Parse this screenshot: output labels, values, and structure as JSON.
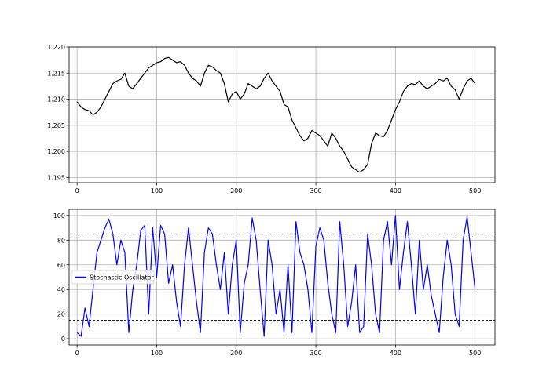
{
  "colors": {
    "price_line": "#000000",
    "oscillator_line": "#0000ff",
    "grid": "#b0b0b0",
    "threshold": "#000000",
    "frame": "#000000",
    "background": "#ffffff"
  },
  "chart_data": [
    {
      "type": "line",
      "title": "",
      "xlabel": "",
      "ylabel": "",
      "xlim": [
        -10,
        525
      ],
      "ylim": [
        1.194,
        1.22
      ],
      "grid": true,
      "x_ticks": [
        0,
        100,
        200,
        300,
        400,
        500
      ],
      "x_tick_labels": [
        "0",
        "100",
        "200",
        "300",
        "400",
        "500"
      ],
      "y_ticks": [
        1.195,
        1.2,
        1.205,
        1.21,
        1.215,
        1.22
      ],
      "y_tick_labels": [
        "1.195",
        "1.200",
        "1.205",
        "1.210",
        "1.215",
        "1.220"
      ],
      "series": [
        {
          "x": [
            0,
            5,
            10,
            15,
            20,
            25,
            30,
            35,
            40,
            45,
            50,
            55,
            60,
            65,
            70,
            75,
            80,
            85,
            90,
            95,
            100,
            105,
            110,
            115,
            120,
            125,
            130,
            135,
            140,
            145,
            150,
            155,
            160,
            165,
            170,
            175,
            180,
            185,
            190,
            195,
            200,
            205,
            210,
            215,
            220,
            225,
            230,
            235,
            240,
            245,
            250,
            255,
            260,
            265,
            270,
            275,
            280,
            285,
            290,
            295,
            300,
            305,
            310,
            315,
            320,
            325,
            330,
            335,
            340,
            345,
            350,
            355,
            360,
            365,
            370,
            375,
            380,
            385,
            390,
            395,
            400,
            405,
            410,
            415,
            420,
            425,
            430,
            435,
            440,
            445,
            450,
            455,
            460,
            465,
            470,
            475,
            480,
            485,
            490,
            495,
            500
          ],
          "y": [
            1.2095,
            1.2085,
            1.208,
            1.2078,
            1.207,
            1.2075,
            1.2085,
            1.21,
            1.2115,
            1.213,
            1.2135,
            1.2138,
            1.215,
            1.2125,
            1.212,
            1.213,
            1.214,
            1.215,
            1.216,
            1.2165,
            1.217,
            1.2172,
            1.2178,
            1.218,
            1.2175,
            1.217,
            1.2172,
            1.2165,
            1.215,
            1.214,
            1.2135,
            1.2125,
            1.215,
            1.2165,
            1.2162,
            1.2155,
            1.215,
            1.213,
            1.2095,
            1.211,
            1.2115,
            1.21,
            1.211,
            1.213,
            1.2125,
            1.212,
            1.2125,
            1.214,
            1.215,
            1.2135,
            1.2125,
            1.2115,
            1.209,
            1.2085,
            1.206,
            1.2045,
            1.203,
            1.202,
            1.2025,
            1.204,
            1.2035,
            1.203,
            1.202,
            1.201,
            1.2035,
            1.2025,
            1.201,
            1.2,
            1.1985,
            1.197,
            1.1965,
            1.196,
            1.1965,
            1.1975,
            1.2015,
            1.2035,
            1.203,
            1.2028,
            1.204,
            1.206,
            1.208,
            1.2095,
            1.2115,
            1.2125,
            1.213,
            1.2128,
            1.2135,
            1.2125,
            1.212,
            1.2125,
            1.213,
            1.2138,
            1.2135,
            1.214,
            1.2125,
            1.2118,
            1.21,
            1.212,
            1.2135,
            1.214,
            1.213
          ]
        }
      ]
    },
    {
      "type": "line",
      "title": "",
      "xlabel": "",
      "ylabel": "",
      "xlim": [
        -10,
        525
      ],
      "ylim": [
        -5,
        105
      ],
      "grid": true,
      "legend_position": "center-left",
      "reference_lines": [
        85,
        15
      ],
      "x_ticks": [
        0,
        100,
        200,
        300,
        400,
        500
      ],
      "x_tick_labels": [
        "0",
        "100",
        "200",
        "300",
        "400",
        "500"
      ],
      "y_ticks": [
        0,
        20,
        40,
        60,
        80,
        100
      ],
      "y_tick_labels": [
        "0",
        "20",
        "40",
        "60",
        "80",
        "100"
      ],
      "series": [
        {
          "name": "Stochastic Oscillator",
          "x": [
            0,
            5,
            10,
            15,
            20,
            25,
            30,
            35,
            40,
            45,
            50,
            55,
            60,
            65,
            70,
            75,
            80,
            85,
            90,
            95,
            100,
            105,
            110,
            115,
            120,
            125,
            130,
            135,
            140,
            145,
            150,
            155,
            160,
            165,
            170,
            175,
            180,
            185,
            190,
            195,
            200,
            205,
            210,
            215,
            220,
            225,
            230,
            235,
            240,
            245,
            250,
            255,
            260,
            265,
            270,
            275,
            280,
            285,
            290,
            295,
            300,
            305,
            310,
            315,
            320,
            325,
            330,
            335,
            340,
            345,
            350,
            355,
            360,
            365,
            370,
            375,
            380,
            385,
            390,
            395,
            400,
            405,
            410,
            415,
            420,
            425,
            430,
            435,
            440,
            445,
            450,
            455,
            460,
            465,
            470,
            475,
            480,
            485,
            490,
            495,
            500
          ],
          "y": [
            5,
            2,
            25,
            10,
            40,
            70,
            80,
            90,
            97,
            85,
            60,
            80,
            70,
            5,
            40,
            60,
            88,
            92,
            20,
            90,
            50,
            92,
            85,
            45,
            60,
            30,
            10,
            60,
            90,
            60,
            30,
            5,
            70,
            90,
            85,
            60,
            40,
            70,
            20,
            60,
            80,
            5,
            45,
            60,
            98,
            80,
            40,
            2,
            80,
            60,
            20,
            40,
            5,
            60,
            5,
            95,
            70,
            60,
            40,
            5,
            75,
            90,
            80,
            45,
            20,
            5,
            95,
            60,
            10,
            30,
            60,
            5,
            10,
            85,
            60,
            20,
            5,
            80,
            95,
            60,
            100,
            40,
            70,
            95,
            60,
            20,
            80,
            40,
            60,
            35,
            20,
            5,
            50,
            80,
            60,
            20,
            10,
            80,
            99,
            70,
            40
          ]
        }
      ]
    }
  ]
}
